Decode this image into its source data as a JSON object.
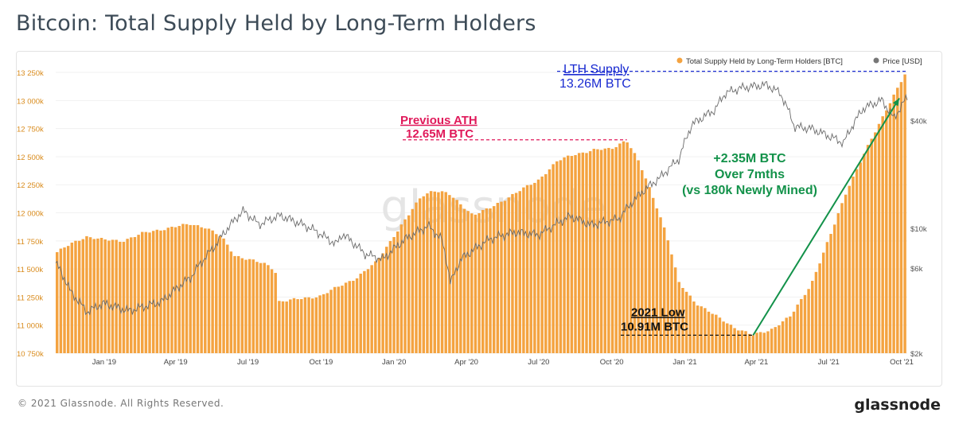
{
  "title": "Bitcoin: Total Supply Held by Long-Term Holders",
  "footer": {
    "copyright": "© 2021 Glassnode. All Rights Reserved.",
    "brand": "glassnode"
  },
  "watermark": "glassnode",
  "colors": {
    "supply": "#f4a340",
    "supply_axis": "#d98b1c",
    "price": "#555555",
    "ath": "#e0195a",
    "lth": "#1a2bd1",
    "growth": "#13924a",
    "low": "#111111"
  },
  "chart_data": {
    "type": "bar",
    "legend_position": "top-right",
    "x_ticks": [
      "Jan '19",
      "Apr '19",
      "Jul '19",
      "Oct '19",
      "Jan '20",
      "Apr '20",
      "Jul '20",
      "Oct '20",
      "Jan '21",
      "Apr '21",
      "Jul '21",
      "Oct '21"
    ],
    "y_left_ticks": [
      "10 750k",
      "11 000k",
      "11 250k",
      "11 500k",
      "11 750k",
      "12 000k",
      "12 250k",
      "12 500k",
      "12 750k",
      "13 000k",
      "13 250k"
    ],
    "y_left_range": [
      10750000,
      13300000
    ],
    "y_right_ticks": [
      "$2k",
      "$6k",
      "$10k",
      "$40k"
    ],
    "y_right_range_usd": [
      2000,
      80000
    ],
    "y_right_scale": "log",
    "x_range": [
      "2018-11-01",
      "2021-10-08"
    ],
    "series": [
      {
        "name": "Total Supply Held by Long-Term Holders [BTC]",
        "kind": "bar",
        "points": [
          [
            "2018-11-01",
            11640000
          ],
          [
            "2018-11-20",
            11720000
          ],
          [
            "2018-12-10",
            11790000
          ],
          [
            "2019-01-01",
            11760000
          ],
          [
            "2019-01-25",
            11750000
          ],
          [
            "2019-02-20",
            11820000
          ],
          [
            "2019-03-20",
            11860000
          ],
          [
            "2019-04-20",
            11900000
          ],
          [
            "2019-05-10",
            11870000
          ],
          [
            "2019-05-30",
            11780000
          ],
          [
            "2019-06-15",
            11620000
          ],
          [
            "2019-07-05",
            11580000
          ],
          [
            "2019-07-25",
            11540000
          ],
          [
            "2019-08-05",
            11490000
          ],
          [
            "2019-08-10",
            11210000
          ],
          [
            "2019-09-01",
            11230000
          ],
          [
            "2019-10-01",
            11260000
          ],
          [
            "2019-10-20",
            11330000
          ],
          [
            "2019-11-15",
            11420000
          ],
          [
            "2019-12-10",
            11560000
          ],
          [
            "2020-01-01",
            11790000
          ],
          [
            "2020-01-20",
            11980000
          ],
          [
            "2020-02-05",
            12150000
          ],
          [
            "2020-02-20",
            12200000
          ],
          [
            "2020-03-10",
            12170000
          ],
          [
            "2020-03-25",
            12080000
          ],
          [
            "2020-04-10",
            11980000
          ],
          [
            "2020-05-01",
            12040000
          ],
          [
            "2020-06-01",
            12170000
          ],
          [
            "2020-07-01",
            12290000
          ],
          [
            "2020-07-25",
            12460000
          ],
          [
            "2020-08-15",
            12520000
          ],
          [
            "2020-09-10",
            12560000
          ],
          [
            "2020-10-01",
            12570000
          ],
          [
            "2020-10-20",
            12650000
          ],
          [
            "2020-11-05",
            12450000
          ],
          [
            "2020-11-25",
            12100000
          ],
          [
            "2020-12-10",
            11800000
          ],
          [
            "2020-12-25",
            11380000
          ],
          [
            "2021-01-15",
            11200000
          ],
          [
            "2021-02-10",
            11080000
          ],
          [
            "2021-03-05",
            10980000
          ],
          [
            "2021-03-28",
            10910000
          ],
          [
            "2021-04-20",
            10960000
          ],
          [
            "2021-05-15",
            11080000
          ],
          [
            "2021-06-10",
            11370000
          ],
          [
            "2021-07-05",
            11820000
          ],
          [
            "2021-07-25",
            12210000
          ],
          [
            "2021-08-20",
            12590000
          ],
          [
            "2021-09-15",
            12960000
          ],
          [
            "2021-10-08",
            13260000
          ]
        ]
      },
      {
        "name": "Price [USD]",
        "kind": "line",
        "points": [
          [
            "2018-11-01",
            6400
          ],
          [
            "2018-11-20",
            4400
          ],
          [
            "2018-12-10",
            3400
          ],
          [
            "2018-12-31",
            3800
          ],
          [
            "2019-02-01",
            3450
          ],
          [
            "2019-03-15",
            3900
          ],
          [
            "2019-04-20",
            5300
          ],
          [
            "2019-05-20",
            7900
          ],
          [
            "2019-06-25",
            12500
          ],
          [
            "2019-07-15",
            10500
          ],
          [
            "2019-08-10",
            11800
          ],
          [
            "2019-09-20",
            9900
          ],
          [
            "2019-10-20",
            8100
          ],
          [
            "2019-10-28",
            9300
          ],
          [
            "2019-11-25",
            7200
          ],
          [
            "2019-12-18",
            6700
          ],
          [
            "2020-01-15",
            8700
          ],
          [
            "2020-02-13",
            10300
          ],
          [
            "2020-03-01",
            8600
          ],
          [
            "2020-03-12",
            4900
          ],
          [
            "2020-03-25",
            6700
          ],
          [
            "2020-04-30",
            8700
          ],
          [
            "2020-06-01",
            9500
          ],
          [
            "2020-07-01",
            9200
          ],
          [
            "2020-08-10",
            11700
          ],
          [
            "2020-09-05",
            10400
          ],
          [
            "2020-10-10",
            11300
          ],
          [
            "2020-11-05",
            15500
          ],
          [
            "2020-12-01",
            19200
          ],
          [
            "2020-12-25",
            24500
          ],
          [
            "2021-01-10",
            38000
          ],
          [
            "2021-02-08",
            46000
          ],
          [
            "2021-02-21",
            57000
          ],
          [
            "2021-03-13",
            61000
          ],
          [
            "2021-04-14",
            63500
          ],
          [
            "2021-05-01",
            57000
          ],
          [
            "2021-05-19",
            37000
          ],
          [
            "2021-06-10",
            36000
          ],
          [
            "2021-07-20",
            30000
          ],
          [
            "2021-08-14",
            47000
          ],
          [
            "2021-09-06",
            52000
          ],
          [
            "2021-09-21",
            41000
          ],
          [
            "2021-10-08",
            54000
          ]
        ]
      }
    ],
    "annotations": {
      "ath": {
        "title": "Previous ATH",
        "value": "12.65M BTC"
      },
      "lth": {
        "title": "LTH Supply",
        "value": "13.26M BTC"
      },
      "growth": [
        "+2.35M BTC",
        "Over 7mths",
        "(vs 180k Newly Mined)"
      ],
      "low": {
        "title": "2021 Low",
        "value": "10.91M BTC"
      }
    }
  }
}
